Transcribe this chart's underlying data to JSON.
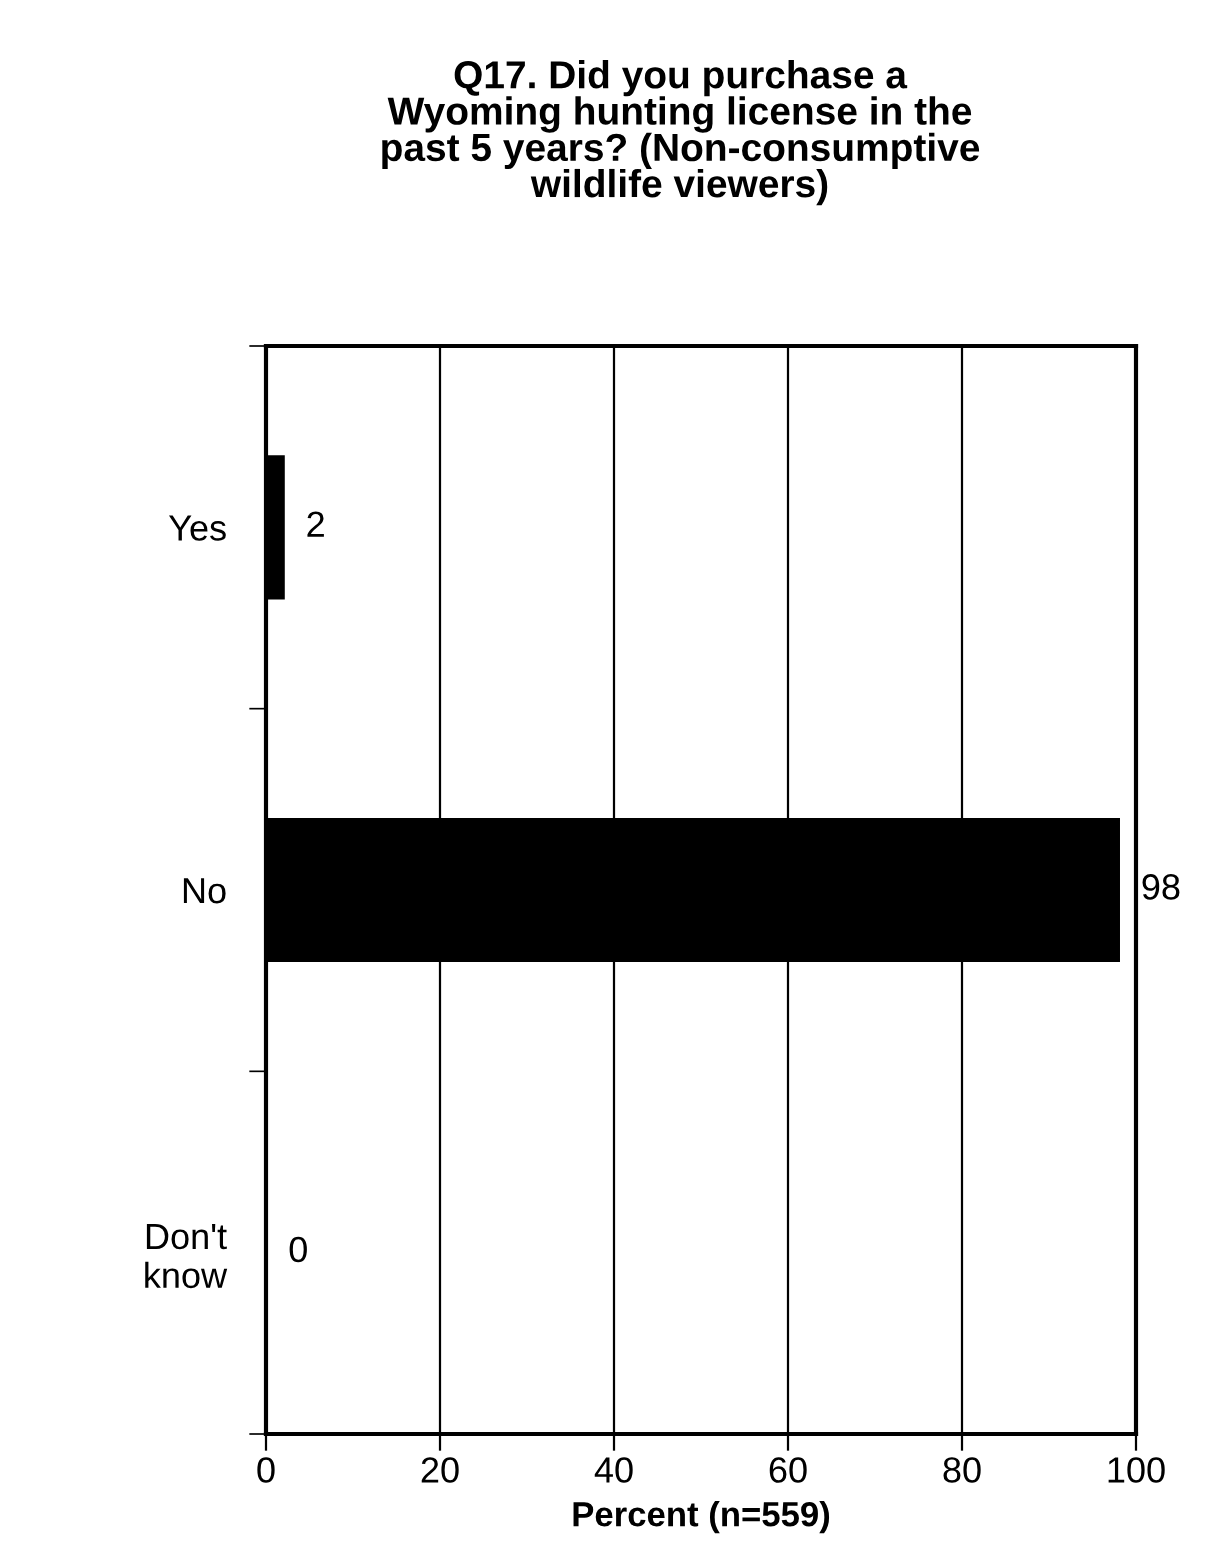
{
  "chart_data": {
    "type": "bar",
    "orientation": "horizontal",
    "title": "Q17. Did you purchase a\nWyoming hunting license in the\npast 5 years? (Non-consumptive\nwildlife viewers)",
    "categories": [
      "Yes",
      "No",
      "Don't\nknow"
    ],
    "values": [
      2,
      98,
      0
    ],
    "color": "#000000",
    "xlim": [
      0,
      100
    ],
    "xticks": [
      0,
      20,
      40,
      60,
      80,
      100
    ],
    "xlabel": "Percent (n=559)",
    "grid": "x",
    "data_labels": true
  }
}
